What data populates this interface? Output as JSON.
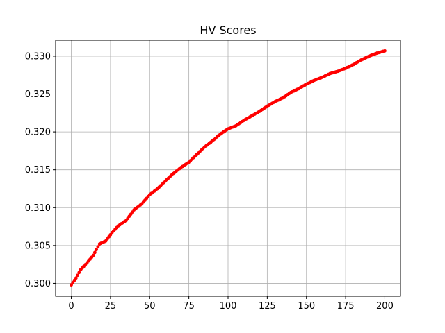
{
  "chart_data": {
    "type": "line",
    "title": "HV Scores",
    "xlabel": "",
    "ylabel": "",
    "xlim": [
      -10,
      210
    ],
    "ylim": [
      0.2983,
      0.3321
    ],
    "xticks": [
      0,
      25,
      50,
      75,
      100,
      125,
      150,
      175,
      200
    ],
    "xtick_labels": [
      "0",
      "25",
      "50",
      "75",
      "100",
      "125",
      "150",
      "175",
      "200"
    ],
    "yticks": [
      0.3,
      0.305,
      0.31,
      0.315,
      0.32,
      0.325,
      0.33
    ],
    "ytick_labels": [
      "0.300",
      "0.305",
      "0.310",
      "0.315",
      "0.320",
      "0.325",
      "0.330"
    ],
    "grid": true,
    "series": [
      {
        "color": "#ff0000",
        "marker": "circle",
        "anchors": [
          [
            0,
            0.2998
          ],
          [
            3,
            0.3007
          ],
          [
            6,
            0.3018
          ],
          [
            10,
            0.3027
          ],
          [
            14,
            0.3037
          ],
          [
            18,
            0.3052
          ],
          [
            22,
            0.3056
          ],
          [
            26,
            0.3067
          ],
          [
            30,
            0.3076
          ],
          [
            35,
            0.3083
          ],
          [
            40,
            0.3097
          ],
          [
            45,
            0.3105
          ],
          [
            50,
            0.3117
          ],
          [
            55,
            0.3125
          ],
          [
            60,
            0.3135
          ],
          [
            65,
            0.3145
          ],
          [
            70,
            0.3153
          ],
          [
            75,
            0.316
          ],
          [
            80,
            0.317
          ],
          [
            85,
            0.318
          ],
          [
            90,
            0.3188
          ],
          [
            95,
            0.3197
          ],
          [
            100,
            0.3204
          ],
          [
            105,
            0.3208
          ],
          [
            110,
            0.3215
          ],
          [
            115,
            0.3221
          ],
          [
            120,
            0.3227
          ],
          [
            125,
            0.3234
          ],
          [
            130,
            0.324
          ],
          [
            135,
            0.3245
          ],
          [
            140,
            0.3252
          ],
          [
            145,
            0.3257
          ],
          [
            150,
            0.3263
          ],
          [
            155,
            0.3268
          ],
          [
            160,
            0.3272
          ],
          [
            165,
            0.3277
          ],
          [
            170,
            0.328
          ],
          [
            175,
            0.3284
          ],
          [
            180,
            0.3289
          ],
          [
            185,
            0.3295
          ],
          [
            190,
            0.33
          ],
          [
            195,
            0.3304
          ],
          [
            200,
            0.3307
          ]
        ]
      }
    ]
  }
}
